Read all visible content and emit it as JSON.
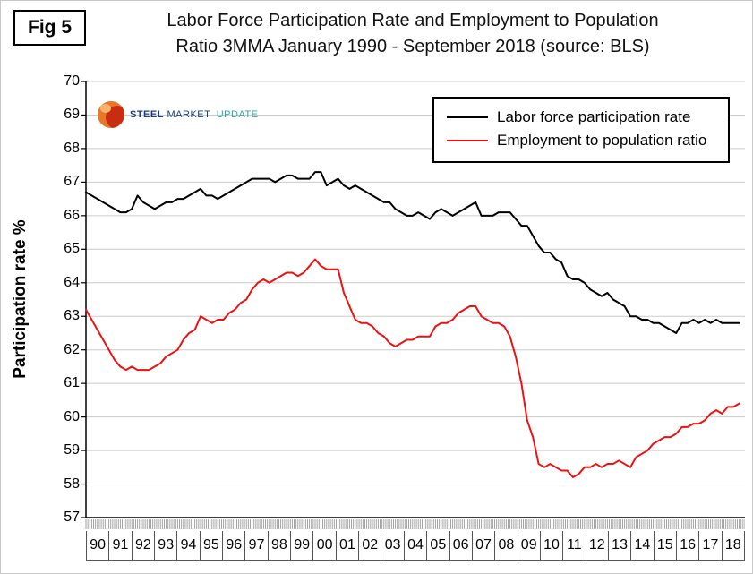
{
  "figure_label": "Fig 5",
  "title_line1": "Labor Force Participation Rate and Employment to Population",
  "title_line2": "Ratio 3MMA January 1990 - September 2018 (source: BLS)",
  "logo": {
    "word1": "STEEL",
    "word2": "MARKET",
    "word3": "UPDATE"
  },
  "chart_data": {
    "type": "line",
    "title": "Labor Force Participation Rate and Employment to Population Ratio 3MMA January 1990 - September 2018 (source: BLS)",
    "xlabel": "",
    "ylabel": "Participation rate %",
    "ylim": [
      57,
      70
    ],
    "y_ticks": [
      57,
      58,
      59,
      60,
      61,
      62,
      63,
      64,
      65,
      66,
      67,
      68,
      69,
      70
    ],
    "x_start_year": 1990,
    "x_end_year_fraction": 2018.75,
    "points_per_year": 4,
    "x_year_labels": [
      "90",
      "91",
      "92",
      "93",
      "94",
      "95",
      "96",
      "97",
      "98",
      "99",
      "00",
      "01",
      "02",
      "03",
      "04",
      "05",
      "06",
      "07",
      "08",
      "09",
      "10",
      "11",
      "12",
      "13",
      "14",
      "15",
      "16",
      "17",
      "18"
    ],
    "grid": "horizontal",
    "legend_position": "top-right",
    "series": [
      {
        "name": "Labor force participation rate",
        "color": "#000000",
        "values": [
          66.7,
          66.6,
          66.5,
          66.4,
          66.3,
          66.2,
          66.1,
          66.1,
          66.2,
          66.6,
          66.4,
          66.3,
          66.2,
          66.3,
          66.4,
          66.4,
          66.5,
          66.5,
          66.6,
          66.7,
          66.8,
          66.6,
          66.6,
          66.5,
          66.6,
          66.7,
          66.8,
          66.9,
          67.0,
          67.1,
          67.1,
          67.1,
          67.1,
          67.0,
          67.1,
          67.2,
          67.2,
          67.1,
          67.1,
          67.1,
          67.3,
          67.3,
          66.9,
          67.0,
          67.1,
          66.9,
          66.8,
          66.9,
          66.8,
          66.7,
          66.6,
          66.5,
          66.4,
          66.4,
          66.2,
          66.1,
          66.0,
          66.0,
          66.1,
          66.0,
          65.9,
          66.1,
          66.2,
          66.1,
          66.0,
          66.1,
          66.2,
          66.3,
          66.4,
          66.0,
          66.0,
          66.0,
          66.1,
          66.1,
          66.1,
          65.9,
          65.7,
          65.7,
          65.4,
          65.1,
          64.9,
          64.9,
          64.7,
          64.6,
          64.2,
          64.1,
          64.1,
          64.0,
          63.8,
          63.7,
          63.6,
          63.7,
          63.5,
          63.4,
          63.3,
          63.0,
          63.0,
          62.9,
          62.9,
          62.8,
          62.8,
          62.7,
          62.6,
          62.5,
          62.8,
          62.8,
          62.9,
          62.8,
          62.9,
          62.8,
          62.9,
          62.8,
          62.8,
          62.8,
          62.8
        ]
      },
      {
        "name": "Employment to population ratio",
        "color": "#ee1111",
        "values": [
          63.2,
          62.9,
          62.6,
          62.3,
          62.0,
          61.7,
          61.5,
          61.4,
          61.5,
          61.4,
          61.4,
          61.4,
          61.5,
          61.6,
          61.8,
          61.9,
          62.0,
          62.3,
          62.5,
          62.6,
          63.0,
          62.9,
          62.8,
          62.9,
          62.9,
          63.1,
          63.2,
          63.4,
          63.5,
          63.8,
          64.0,
          64.1,
          64.0,
          64.1,
          64.2,
          64.3,
          64.3,
          64.2,
          64.3,
          64.5,
          64.7,
          64.5,
          64.4,
          64.4,
          64.4,
          63.7,
          63.3,
          62.9,
          62.8,
          62.8,
          62.7,
          62.5,
          62.4,
          62.2,
          62.1,
          62.2,
          62.3,
          62.3,
          62.4,
          62.4,
          62.4,
          62.7,
          62.8,
          62.8,
          62.9,
          63.1,
          63.2,
          63.3,
          63.3,
          63.0,
          62.9,
          62.8,
          62.8,
          62.7,
          62.4,
          61.8,
          61.0,
          59.9,
          59.4,
          58.6,
          58.5,
          58.6,
          58.5,
          58.4,
          58.4,
          58.2,
          58.3,
          58.5,
          58.5,
          58.6,
          58.5,
          58.6,
          58.6,
          58.7,
          58.6,
          58.5,
          58.8,
          58.9,
          59.0,
          59.2,
          59.3,
          59.4,
          59.4,
          59.5,
          59.7,
          59.7,
          59.8,
          59.8,
          59.9,
          60.1,
          60.2,
          60.1,
          60.3,
          60.3,
          60.4
        ]
      }
    ]
  }
}
